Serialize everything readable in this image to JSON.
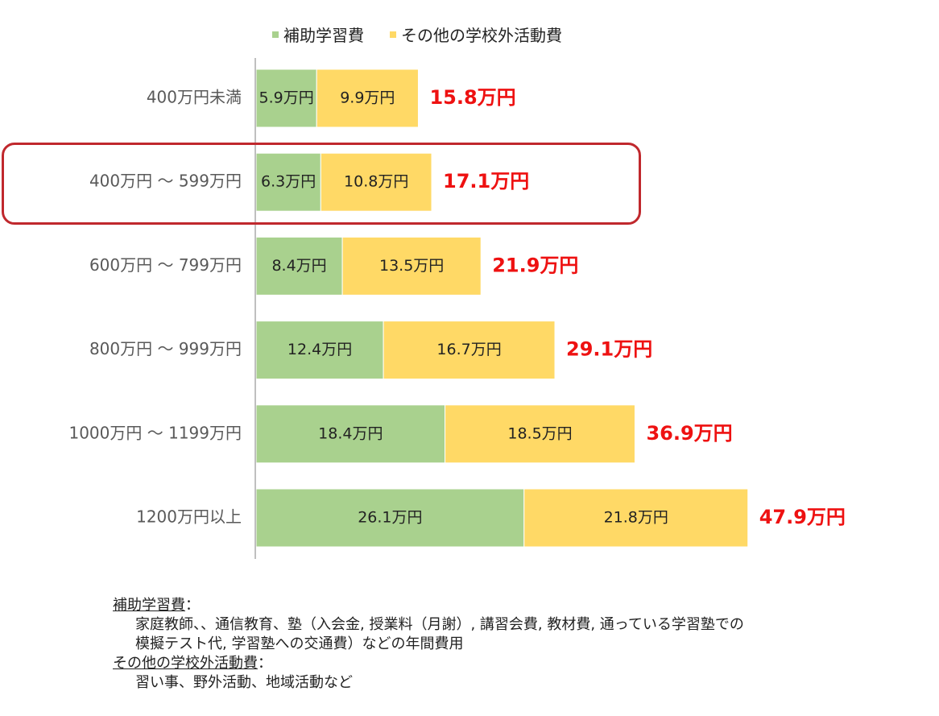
{
  "legend": {
    "series_a": "補助学習費",
    "series_b": "その他の学校外活動費"
  },
  "colors": {
    "series_a": "#a9d18e",
    "series_b": "#ffd966",
    "total": "#ee1111",
    "axis": "#bfbfbf",
    "highlight": "#c0282d"
  },
  "chart_data": {
    "type": "bar",
    "orientation": "horizontal",
    "stacked": true,
    "categories": [
      "400万円未満",
      "400万円 ～ 599万円",
      "600万円 ～ 799万円",
      "800万円 ～ 999万円",
      "1000万円 ～ 1199万円",
      "1200万円以上"
    ],
    "series": [
      {
        "name": "補助学習費",
        "values": [
          5.9,
          6.3,
          8.4,
          12.4,
          18.4,
          26.1
        ],
        "labels": [
          "5.9万円",
          "6.3万円",
          "8.4万円",
          "12.4万円",
          "18.4万円",
          "26.1万円"
        ]
      },
      {
        "name": "その他の学校外活動費",
        "values": [
          9.9,
          10.8,
          13.5,
          16.7,
          18.5,
          21.8
        ],
        "labels": [
          "9.9万円",
          "10.8万円",
          "13.5万円",
          "16.7万円",
          "18.5万円",
          "21.8万円"
        ]
      }
    ],
    "totals": [
      15.8,
      17.1,
      21.9,
      29.1,
      36.9,
      47.9
    ],
    "total_labels": [
      "15.8万円",
      "17.1万円",
      "21.9万円",
      "29.1万円",
      "36.9万円",
      "47.9万円"
    ],
    "highlighted_category": "400万円 ～ 599万円",
    "legend_position": "top",
    "grid": false
  },
  "notes": {
    "a_head": "補助学習費",
    "a_colon": "：",
    "a_line1": "家庭教師、、通信教育、塾（入会金, 授業料（月謝）, 講習会費, 教材費, 通っている学習塾での",
    "a_line2": "模擬テスト代, 学習塾への交通費）などの年間費用",
    "b_head": "その他の学校外活動費",
    "b_colon": "：",
    "b_line1": "習い事、野外活動、地域活動など"
  }
}
